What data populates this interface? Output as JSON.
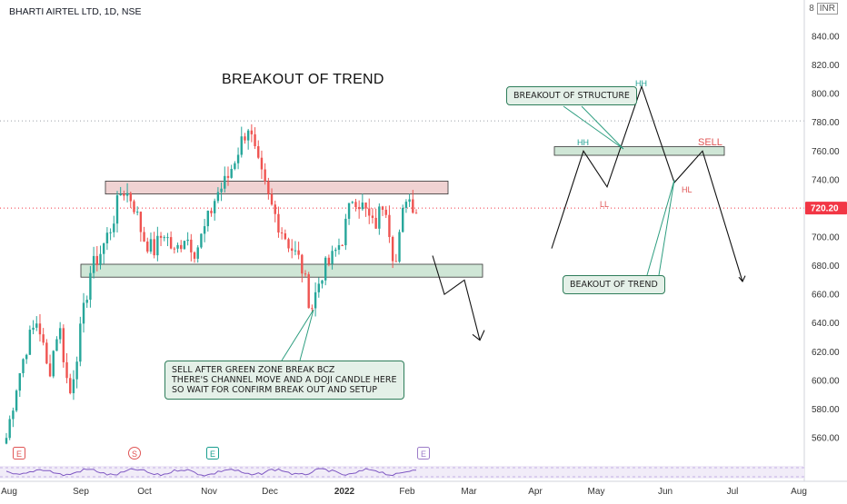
{
  "header": {
    "symbol_title": "BHARTI AIRTEL LTD, 1D, NSE",
    "currency": "INR",
    "currency_prefix": "8"
  },
  "annotations": {
    "main_title": "BREAKOUT OF TREND",
    "breakout_structure": "BREAKOUT OF STRUCTURE",
    "breakout_trend": "BEAKOUT OF TREND",
    "sell_note": "SELL AFTER GREEN ZONE BREAK BCZ\nTHERE'S CHANNEL MOVE AND A DOJI CANDLE HERE\nSO WAIT FOR CONFIRM BREAK OUT AND SETUP",
    "hh_left": "HH",
    "hh_top": "HH",
    "ll": "LL",
    "hl": "HL",
    "sell": "SELL"
  },
  "colors": {
    "up": "#26a69a",
    "down": "#ef5350",
    "support_zone": "#cfe6d6",
    "resistance_zone": "#f0d2d2",
    "price_tag": "#f23645",
    "rsi": "#7e57c2"
  },
  "chart_data": {
    "type": "candlestick",
    "title": "BHARTI AIRTEL LTD, 1D, NSE",
    "y_axis": {
      "ticks": [
        560,
        580,
        600,
        620,
        640,
        660,
        680,
        700,
        720,
        740,
        760,
        780,
        800,
        820,
        840
      ],
      "tick_labels": [
        "560.00",
        "580.00",
        "600.00",
        "620.00",
        "640.00",
        "660.00",
        "680.00",
        "700.00",
        "720.00",
        "740.00",
        "760.00",
        "780.00",
        "800.00",
        "820.00",
        "840.00"
      ],
      "ylim": [
        548,
        850
      ],
      "unit": "INR"
    },
    "x_axis": {
      "labels": [
        "Aug",
        "Sep",
        "Oct",
        "Nov",
        "Dec",
        "2022",
        "Feb",
        "Mar",
        "Apr",
        "May",
        "Jun",
        "Jul",
        "Aug"
      ]
    },
    "last_price": 720.2,
    "last_price_label": "720.20",
    "reference_level": 781,
    "zones": [
      {
        "name": "resistance",
        "low": 730,
        "high": 739
      },
      {
        "name": "support",
        "low": 672,
        "high": 681
      }
    ],
    "anchors": [
      {
        "close": 560
      },
      {
        "close": 598
      },
      {
        "close": 626
      },
      {
        "close": 643
      },
      {
        "close": 603
      },
      {
        "close": 640
      },
      {
        "close": 588
      },
      {
        "close": 632
      },
      {
        "close": 676
      },
      {
        "close": 690
      },
      {
        "close": 708
      },
      {
        "close": 734
      },
      {
        "close": 726
      },
      {
        "close": 700
      },
      {
        "close": 690
      },
      {
        "close": 704
      },
      {
        "close": 688
      },
      {
        "close": 702
      },
      {
        "close": 690
      },
      {
        "close": 708
      },
      {
        "close": 730
      },
      {
        "close": 740
      },
      {
        "close": 760
      },
      {
        "close": 778
      },
      {
        "close": 748
      },
      {
        "close": 725
      },
      {
        "close": 708
      },
      {
        "close": 694
      },
      {
        "close": 682
      },
      {
        "close": 650
      },
      {
        "close": 675
      },
      {
        "close": 685
      },
      {
        "close": 700
      },
      {
        "close": 730
      },
      {
        "close": 720
      },
      {
        "close": 706
      },
      {
        "close": 728
      },
      {
        "close": 678
      },
      {
        "close": 730
      },
      {
        "close": 720
      }
    ],
    "candle_count": 123
  }
}
